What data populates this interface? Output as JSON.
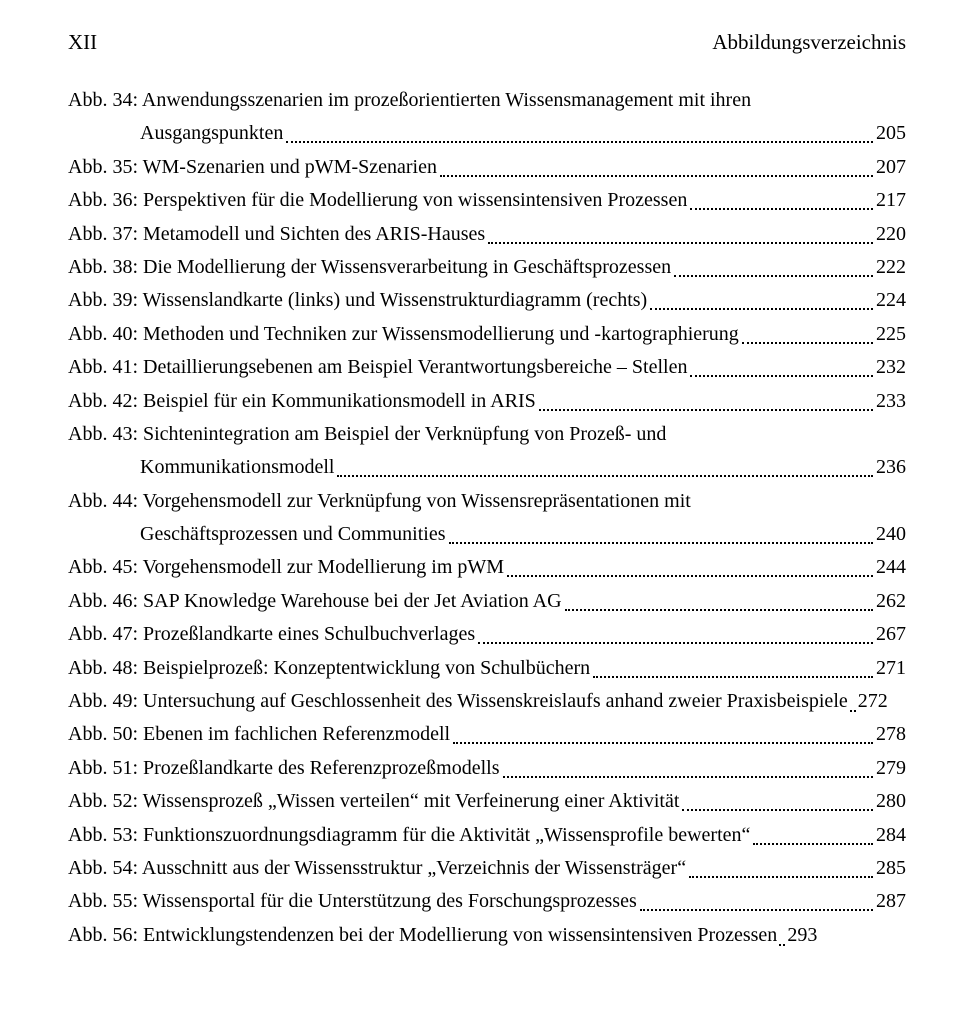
{
  "header": {
    "page_roman": "XII",
    "title": "Abbildungsverzeichnis"
  },
  "entries": [
    {
      "lines": [
        "Abb. 34: Anwendungsszenarien im prozeßorientierten Wissensmanagement mit ihren",
        "Ausgangspunkten"
      ],
      "page": "205",
      "cont_indent": true
    },
    {
      "lines": [
        "Abb. 35: WM-Szenarien und pWM-Szenarien"
      ],
      "page": "207"
    },
    {
      "lines": [
        "Abb. 36: Perspektiven für die Modellierung von wissensintensiven Prozessen"
      ],
      "page": "217"
    },
    {
      "lines": [
        "Abb. 37: Metamodell und Sichten des ARIS-Hauses"
      ],
      "page": "220"
    },
    {
      "lines": [
        "Abb. 38: Die Modellierung der Wissensverarbeitung in Geschäftsprozessen"
      ],
      "page": "222"
    },
    {
      "lines": [
        "Abb. 39: Wissenslandkarte (links) und Wissenstrukturdiagramm (rechts)"
      ],
      "page": "224"
    },
    {
      "lines": [
        "Abb. 40: Methoden und Techniken zur Wissensmodellierung und -kartographierung"
      ],
      "page": "225"
    },
    {
      "lines": [
        "Abb. 41: Detaillierungsebenen am Beispiel Verantwortungsbereiche – Stellen"
      ],
      "page": "232"
    },
    {
      "lines": [
        "Abb. 42: Beispiel für ein Kommunikationsmodell in ARIS"
      ],
      "page": "233"
    },
    {
      "lines": [
        "Abb. 43: Sichtenintegration am Beispiel der Verknüpfung von Prozeß- und",
        "Kommunikationsmodell"
      ],
      "page": "236",
      "cont_indent": true
    },
    {
      "lines": [
        "Abb. 44: Vorgehensmodell zur Verknüpfung von Wissensrepräsentationen mit",
        "Geschäftsprozessen und Communities"
      ],
      "page": "240",
      "cont_indent": true
    },
    {
      "lines": [
        "Abb. 45: Vorgehensmodell zur Modellierung im pWM"
      ],
      "page": "244"
    },
    {
      "lines": [
        "Abb. 46: SAP Knowledge Warehouse bei der Jet Aviation AG"
      ],
      "page": "262"
    },
    {
      "lines": [
        "Abb. 47: Prozeßlandkarte eines Schulbuchverlages"
      ],
      "page": "267"
    },
    {
      "lines": [
        "Abb. 48: Beispielprozeß: Konzeptentwicklung von Schulbüchern"
      ],
      "page": "271"
    },
    {
      "lines": [
        "Abb. 49: Untersuchung auf Geschlossenheit des Wissenskreislaufs anhand zweier Praxisbeispiele"
      ],
      "page": "272",
      "tight": true
    },
    {
      "lines": [
        "Abb. 50: Ebenen im fachlichen Referenzmodell"
      ],
      "page": "278"
    },
    {
      "lines": [
        "Abb. 51: Prozeßlandkarte des Referenzprozeßmodells"
      ],
      "page": "279"
    },
    {
      "lines": [
        "Abb. 52: Wissensprozeß „Wissen verteilen“ mit Verfeinerung einer Aktivität"
      ],
      "page": "280"
    },
    {
      "lines": [
        "Abb. 53: Funktionszuordnungsdiagramm für die Aktivität „Wissensprofile bewerten“"
      ],
      "page": "284"
    },
    {
      "lines": [
        "Abb. 54: Ausschnitt aus der Wissensstruktur „Verzeichnis der Wissensträger“"
      ],
      "page": "285"
    },
    {
      "lines": [
        "Abb. 55: Wissensportal für die Unterstützung des Forschungsprozesses"
      ],
      "page": "287"
    },
    {
      "lines": [
        "Abb. 56: Entwicklungstendenzen bei der Modellierung von wissensintensiven Prozessen"
      ],
      "page": "293",
      "tight": true
    }
  ]
}
